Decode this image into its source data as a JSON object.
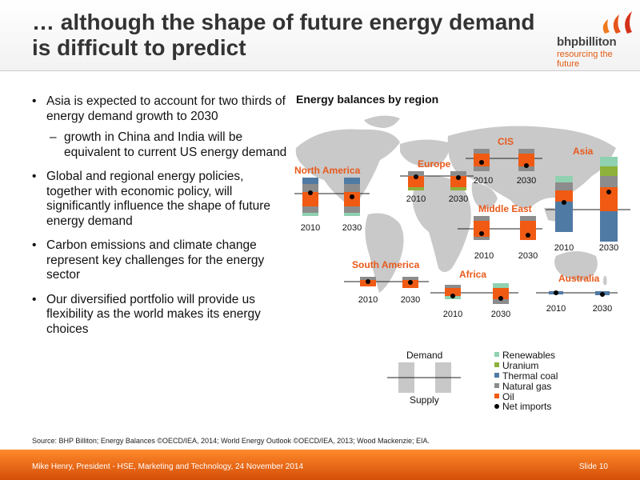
{
  "header": {
    "title_line1": "… although the shape of future energy demand",
    "title_line2": "is difficult to predict",
    "logo_text": "bhpbilliton",
    "logo_tagline": "resourcing the future"
  },
  "bullets": [
    "Asia is expected to account for two thirds of energy demand growth to 2030",
    "growth in China and India will be equivalent to current US energy demand",
    "Global and regional energy policies, together with economic policy, will significantly influence the shape of future energy demand",
    "Carbon emissions and climate change represent key challenges for the energy sector",
    "Our diversified portfolio will provide us flexibility as the world makes its energy choices"
  ],
  "chart_data": {
    "type": "bar",
    "title": "Energy balances by region",
    "regions": [
      {
        "name": "North America",
        "years": [
          "2010",
          "2030"
        ]
      },
      {
        "name": "Europe",
        "years": [
          "2010",
          "2030"
        ]
      },
      {
        "name": "CIS",
        "years": [
          "2010",
          "2030"
        ]
      },
      {
        "name": "Asia",
        "years": [
          "2010",
          "2030"
        ]
      },
      {
        "name": "Middle East",
        "years": [
          "2010",
          "2030"
        ]
      },
      {
        "name": "South America",
        "years": [
          "2010",
          "2030"
        ]
      },
      {
        "name": "Africa",
        "years": [
          "2010",
          "2030"
        ]
      },
      {
        "name": "Australia",
        "years": [
          "2010",
          "2030"
        ]
      }
    ],
    "legend": [
      {
        "label": "Renewables",
        "color": "#8fd1b0"
      },
      {
        "label": "Uranium",
        "color": "#8db13a"
      },
      {
        "label": "Thermal coal",
        "color": "#4f7aa3"
      },
      {
        "label": "Natural gas",
        "color": "#8c8c8c"
      },
      {
        "label": "Oil",
        "color": "#f05a13"
      },
      {
        "label": "Net imports",
        "color": "#000000"
      }
    ],
    "key": {
      "demand": "Demand",
      "supply": "Supply"
    }
  },
  "source_text": "Source:   BHP Billiton; Energy Balances ©OECD/IEA, 2014; World Energy Outlook ©OECD/IEA, 2013; Wood Mackenzie; EIA.",
  "footer": {
    "presenter": "Mike Henry, President - HSE, Marketing and Technology, 24 November 2014",
    "slide": "Slide 10"
  }
}
